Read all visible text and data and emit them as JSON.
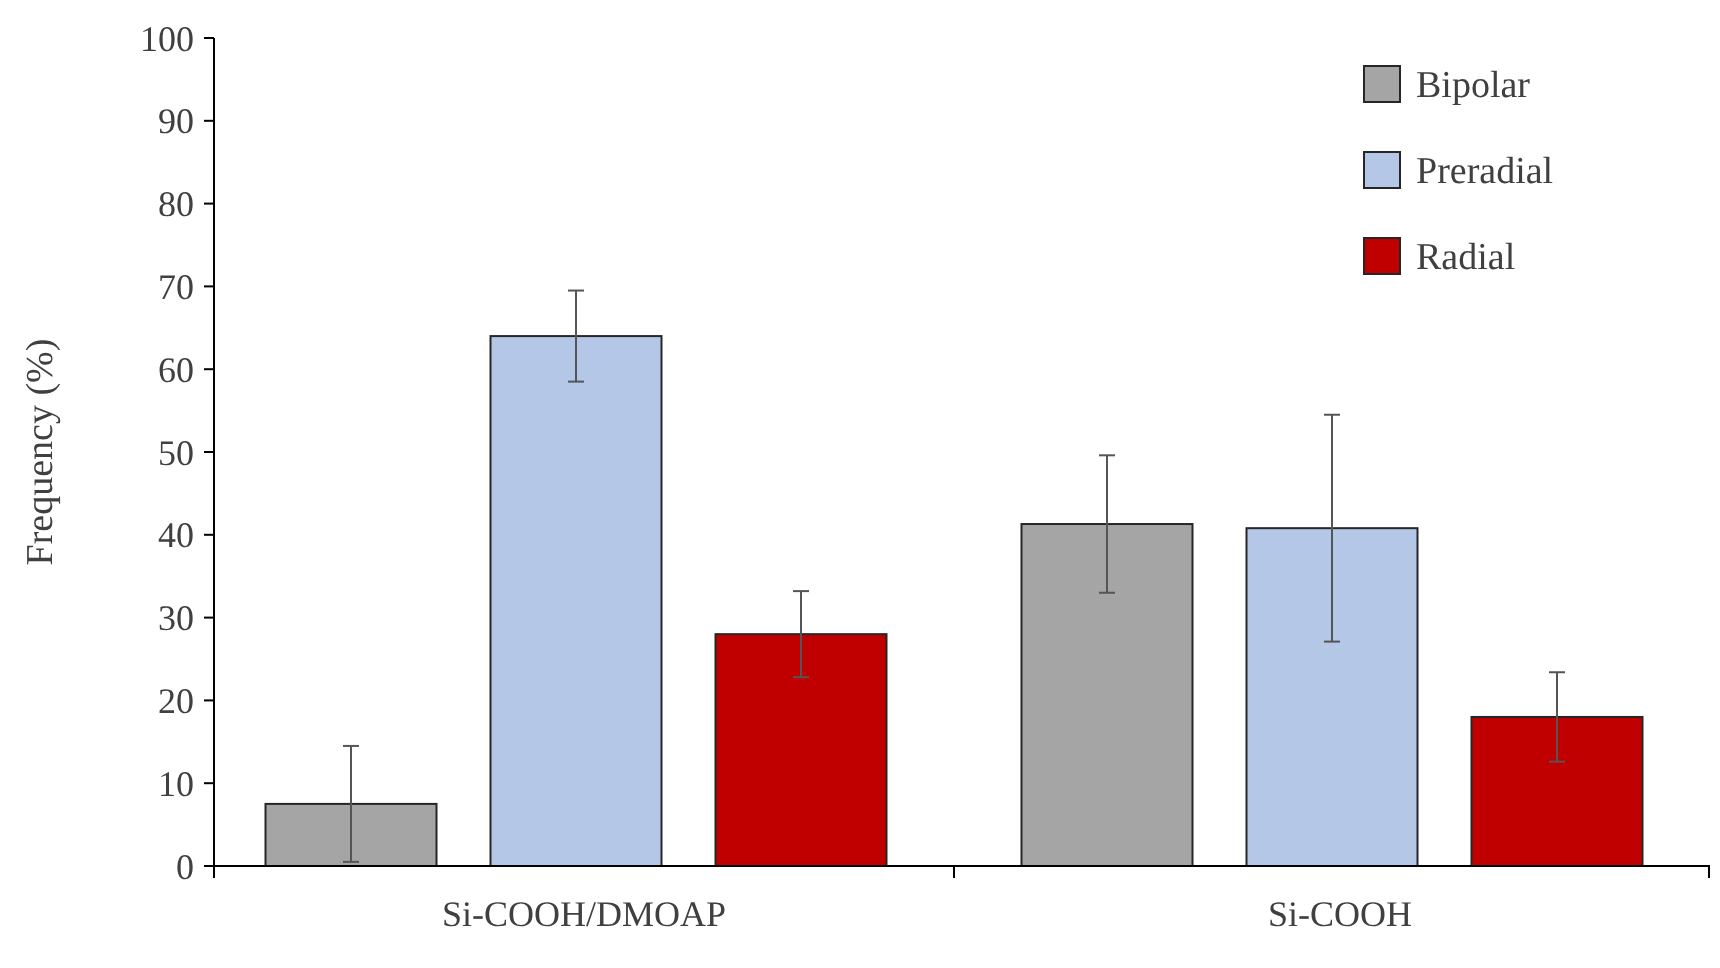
{
  "chart_data": {
    "type": "bar",
    "ylabel": "Frequency (%)",
    "categories": [
      "Si-COOH/DMOAP",
      "Si-COOH"
    ],
    "series": [
      {
        "name": "Bipolar",
        "color": "#a5a5a5",
        "values": [
          7.5,
          41.3
        ],
        "errors": [
          7,
          8.3
        ]
      },
      {
        "name": "Preradial",
        "color": "#b4c7e7",
        "values": [
          64,
          40.8
        ],
        "errors": [
          5.5,
          13.7
        ]
      },
      {
        "name": "Radial",
        "color": "#c00000",
        "values": [
          28,
          18
        ],
        "errors": [
          5.2,
          5.4
        ]
      }
    ],
    "ylim": [
      0,
      100
    ],
    "yticks": [
      0,
      10,
      20,
      30,
      40,
      50,
      60,
      70,
      80,
      90,
      100
    ],
    "grid": false,
    "legend": "top right"
  }
}
